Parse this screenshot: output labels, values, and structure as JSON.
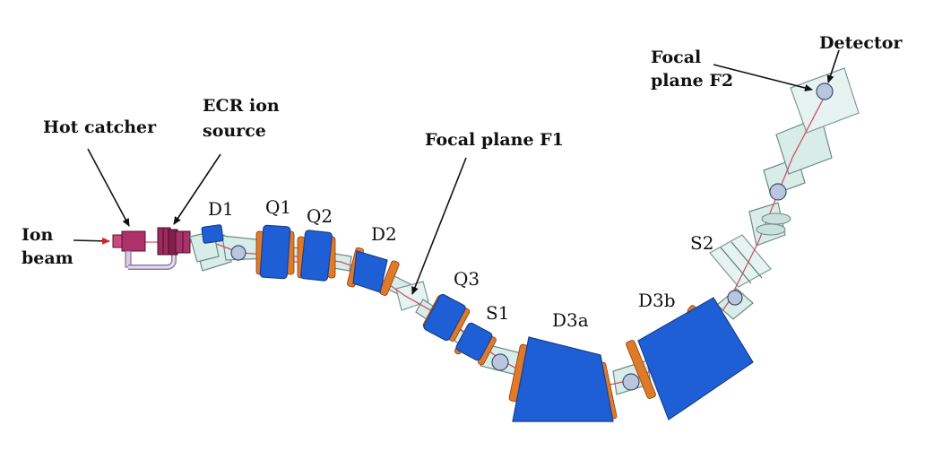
{
  "labels": {
    "ion_beam": [
      "Ion",
      "beam"
    ],
    "hot_catcher": "Hot catcher",
    "ecr_ion_source": [
      "ECR ion",
      "source"
    ],
    "focal_plane_f1": "Focal plane F1",
    "focal_plane_f2": [
      "Focal",
      "plane F2"
    ],
    "detector": "Detector",
    "elements": {
      "d1": "D1",
      "q1": "Q1",
      "q2": "Q2",
      "d2": "D2",
      "q3": "Q3",
      "s1": "S1",
      "d3a": "D3a",
      "d3b": "D3b",
      "s2": "S2"
    }
  },
  "colors": {
    "magnet_blue": "#1f5fd6",
    "coil_orange": "#e07a2b",
    "beam_line": "#d0506a",
    "arrow_red": "#e02020",
    "source_magenta": "#b0306a",
    "pipe_mint": "#d8ece8"
  }
}
